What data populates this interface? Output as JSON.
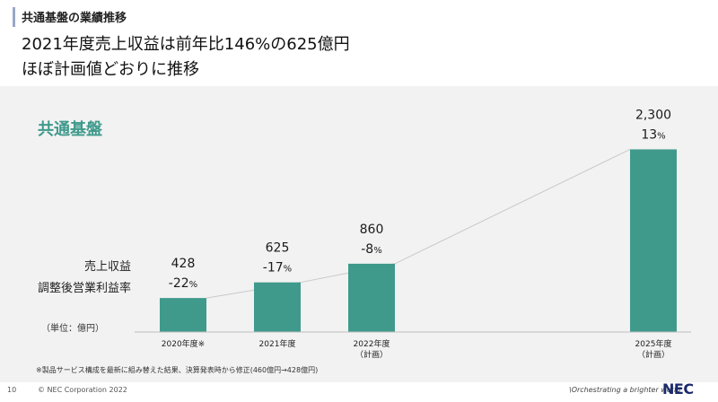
{
  "header": {
    "section_label": "共通基盤の業績推移",
    "headline_line1": "2021年度売上収益は前年比146%の625億円",
    "headline_line2": "ほぼ計画値どおりに推移"
  },
  "panel": {
    "title": "共通基盤",
    "row_label_revenue": "売上収益",
    "row_label_margin": "調整後営業利益率",
    "unit_note": "（単位：億円）"
  },
  "chart_data": {
    "type": "bar",
    "categories": [
      "2020年度※",
      "2021年度",
      "2022年度\n（計画）",
      "2025年度\n（計画）"
    ],
    "category_lines": [
      [
        "2020年度※"
      ],
      [
        "2021年度"
      ],
      [
        "2022年度",
        "（計画）"
      ],
      [
        "2025年度",
        "（計画）"
      ]
    ],
    "series": [
      {
        "name": "売上収益",
        "values": [
          428,
          625,
          860,
          2300
        ]
      },
      {
        "name": "調整後営業利益率",
        "values": [
          -22,
          -17,
          -8,
          13
        ]
      }
    ],
    "revenue_labels": [
      "428",
      "625",
      "860",
      "2,300"
    ],
    "margin_labels": [
      "-22",
      "-17",
      "-8",
      "13"
    ],
    "margin_unit": "%",
    "bar_color": "#3f9a8c",
    "trend_line_color": "#c8c8c8"
  },
  "footer": {
    "footnote": "※製品サービス構成を最新に組み替えた結果、決算発表時から修正(460億円→428億円)",
    "page_number": "10",
    "copyright": "© NEC Corporation 2022",
    "tagline": "\\Orchestrating a brighter world",
    "logo": "NEC"
  }
}
